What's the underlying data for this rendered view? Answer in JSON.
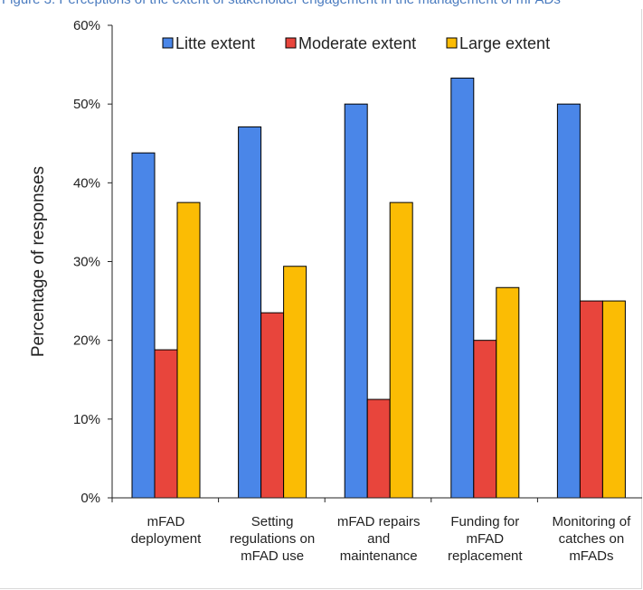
{
  "caption": "Figure 3. Perceptions of the extent of stakeholder engagement in the management of mFADs",
  "chart_data": {
    "type": "bar",
    "title": "",
    "xlabel": "",
    "ylabel": "Percentage of responses",
    "ylim": [
      0,
      60
    ],
    "yticks": [
      "0%",
      "10%",
      "20%",
      "30%",
      "40%",
      "50%",
      "60%"
    ],
    "categories": [
      [
        "mFAD",
        "deployment"
      ],
      [
        "Setting",
        "regulations on",
        "mFAD use"
      ],
      [
        "mFAD repairs",
        "and",
        "maintenance"
      ],
      [
        "Funding for",
        "mFAD",
        "replacement"
      ],
      [
        "Monitoring of",
        "catches on",
        "mFADs"
      ]
    ],
    "series": [
      {
        "name": "Litte extent",
        "color": "#4a86e8",
        "values": [
          43.8,
          47.1,
          50.0,
          53.3,
          50.0
        ]
      },
      {
        "name": "Moderate extent",
        "color": "#e8453c",
        "values": [
          18.8,
          23.5,
          12.5,
          20.0,
          25.0
        ]
      },
      {
        "name": "Large extent",
        "color": "#fbbc04",
        "values": [
          37.5,
          29.4,
          37.5,
          26.7,
          25.0
        ]
      }
    ],
    "legend_position": "top",
    "grid": false
  }
}
